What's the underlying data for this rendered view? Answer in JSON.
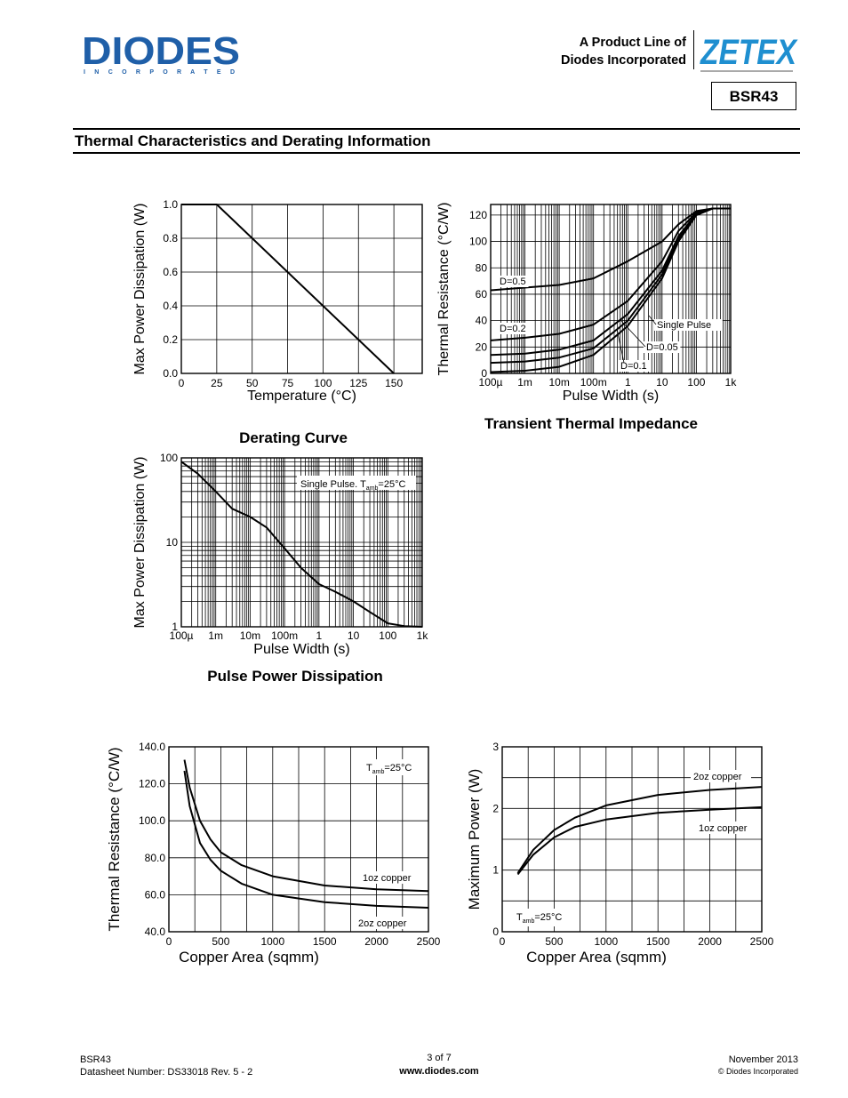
{
  "header": {
    "company": "DIODES",
    "company_sub": "I N C O R P O R A T E D",
    "product_line": [
      "A Product Line of",
      "Diodes Incorporated"
    ],
    "brand": "ZETEX",
    "part_number": "BSR43"
  },
  "section_title": "Thermal Characteristics and Derating Information",
  "footer": {
    "part": "BSR43",
    "datasheet": "Datasheet Number: DS33018 Rev. 5 - 2",
    "page": "3 of 7",
    "url": "www.diodes.com",
    "date": "November 2013",
    "copyright": "© Diodes Incorporated"
  },
  "chart_data": [
    {
      "type": "line",
      "title": "Derating Curve",
      "xlabel": "Temperature (°C)",
      "ylabel": "Max Power Dissipation (W)",
      "xlim": [
        0,
        170
      ],
      "ylim": [
        0,
        1.0
      ],
      "xticks": [
        0,
        25,
        50,
        75,
        100,
        125,
        150
      ],
      "yticks": [
        0.0,
        0.2,
        0.4,
        0.6,
        0.8,
        1.0
      ],
      "ytick_labels": [
        "0.0",
        "0.2",
        "0.4",
        "0.6",
        "0.8",
        "1.0"
      ],
      "grid": true,
      "series": [
        {
          "x": [
            0,
            25,
            150
          ],
          "y": [
            1.0,
            1.0,
            0.0
          ]
        }
      ]
    },
    {
      "type": "line",
      "title": "Transient Thermal Impedance",
      "xlabel": "Pulse Width (s)",
      "ylabel": "Thermal Resistance (°C/W)",
      "xscale": "log",
      "xlim": [
        0.0001,
        1000
      ],
      "ylim": [
        0,
        128
      ],
      "xtick_labels": [
        "100µ",
        "1m",
        "10m",
        "100m",
        "1",
        "10",
        "100",
        "1k"
      ],
      "yticks": [
        0,
        20,
        40,
        60,
        80,
        100,
        120
      ],
      "grid": true,
      "series": [
        {
          "name": "D=0.5",
          "x": [
            0.0001,
            0.001,
            0.01,
            0.1,
            1,
            10,
            30,
            100,
            300,
            1000
          ],
          "y": [
            63,
            65,
            67,
            72,
            85,
            100,
            113,
            123,
            125,
            125
          ]
        },
        {
          "name": "D=0.2",
          "x": [
            0.0001,
            0.001,
            0.01,
            0.1,
            1,
            10,
            30,
            100,
            300,
            1000
          ],
          "y": [
            25,
            27,
            30,
            37,
            55,
            85,
            108,
            122,
            125,
            125
          ]
        },
        {
          "name": "D=0.1",
          "x": [
            0.0001,
            0.001,
            0.01,
            0.1,
            1,
            10,
            30,
            100,
            300,
            1000
          ],
          "y": [
            14,
            15,
            18,
            25,
            45,
            78,
            104,
            121,
            125,
            125
          ]
        },
        {
          "name": "D=0.05",
          "x": [
            0.0001,
            0.001,
            0.01,
            0.1,
            1,
            10,
            30,
            100,
            300,
            1000
          ],
          "y": [
            8,
            9,
            12,
            19,
            40,
            75,
            102,
            120,
            125,
            125
          ]
        },
        {
          "name": "Single Pulse",
          "x": [
            0.0001,
            0.001,
            0.01,
            0.1,
            1,
            10,
            30,
            100,
            300,
            1000
          ],
          "y": [
            1,
            2,
            5,
            14,
            36,
            72,
            100,
            120,
            125,
            125
          ]
        }
      ],
      "annotations": [
        "D=0.5",
        "D=0.2",
        "D=0.1",
        "D=0.05",
        "Single Pulse"
      ]
    },
    {
      "type": "line",
      "title": "Pulse Power Dissipation",
      "xlabel": "Pulse Width (s)",
      "ylabel": "Max Power Dissipation (W)",
      "xscale": "log",
      "yscale": "log",
      "xlim": [
        0.0001,
        1000
      ],
      "ylim": [
        1,
        100
      ],
      "xtick_labels": [
        "100µ",
        "1m",
        "10m",
        "100m",
        "1",
        "10",
        "100",
        "1k"
      ],
      "ytick_labels": [
        "1",
        "10",
        "100"
      ],
      "grid": true,
      "annotation": {
        "text": "Single Pulse. T",
        "sub": "amb",
        "tail": "=25°C"
      },
      "series": [
        {
          "x": [
            0.0001,
            0.0003,
            0.001,
            0.003,
            0.01,
            0.03,
            0.1,
            0.3,
            1,
            3,
            10,
            30,
            100,
            300,
            1000
          ],
          "y": [
            90,
            65,
            40,
            25,
            20,
            15,
            8.5,
            5,
            3.2,
            2.6,
            2.0,
            1.5,
            1.1,
            1.02,
            1.0
          ]
        }
      ]
    },
    {
      "type": "line",
      "xlabel": "Copper Area (sqmm)",
      "ylabel": "Thermal Resistance (°C/W)",
      "xlim": [
        0,
        2500
      ],
      "ylim": [
        40,
        140
      ],
      "xticks": [
        0,
        500,
        1000,
        1500,
        2000,
        2500
      ],
      "yticks": [
        40,
        60,
        80,
        100,
        120,
        140
      ],
      "ytick_labels": [
        "40.0",
        "60.0",
        "80.0",
        "100.0",
        "120.0",
        "140.0"
      ],
      "grid": true,
      "annotation": {
        "text": "T",
        "sub": "amb",
        "tail": "=25°C"
      },
      "series": [
        {
          "name": "1oz copper",
          "x": [
            150,
            200,
            300,
            400,
            500,
            700,
            1000,
            1500,
            2000,
            2500
          ],
          "y": [
            133,
            118,
            100,
            90,
            83,
            76,
            70,
            65,
            63,
            62
          ]
        },
        {
          "name": "2oz copper",
          "x": [
            150,
            200,
            300,
            400,
            500,
            700,
            1000,
            1500,
            2000,
            2500
          ],
          "y": [
            127,
            108,
            88,
            79,
            73,
            66,
            60,
            56,
            54,
            53
          ]
        }
      ]
    },
    {
      "type": "line",
      "xlabel": "Copper Area (sqmm)",
      "ylabel": "Maximum Power (W)",
      "xlim": [
        0,
        2500
      ],
      "ylim": [
        0,
        3
      ],
      "xticks": [
        0,
        500,
        1000,
        1500,
        2000,
        2500
      ],
      "yticks": [
        0,
        1,
        2,
        3
      ],
      "grid": true,
      "annotation": {
        "text": "T",
        "sub": "amb",
        "tail": "=25°C"
      },
      "series": [
        {
          "name": "2oz copper",
          "x": [
            150,
            300,
            500,
            700,
            1000,
            1500,
            2000,
            2500
          ],
          "y": [
            0.95,
            1.33,
            1.65,
            1.85,
            2.05,
            2.22,
            2.3,
            2.35
          ]
        },
        {
          "name": "1oz copper",
          "x": [
            150,
            300,
            500,
            700,
            1000,
            1500,
            2000,
            2500
          ],
          "y": [
            0.93,
            1.25,
            1.53,
            1.7,
            1.82,
            1.93,
            1.98,
            2.02
          ]
        }
      ]
    }
  ]
}
